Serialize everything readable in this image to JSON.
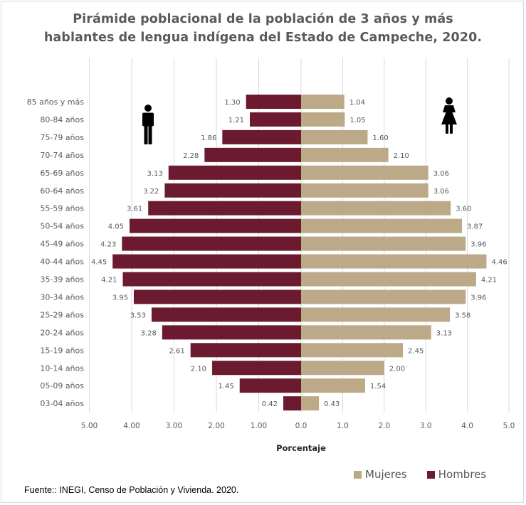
{
  "title": {
    "line1": "Pirámide poblacional de la población de 3 años y más",
    "line2": "hablantes de lengua indígena del Estado de Campeche, 2020."
  },
  "source": "Fuente:: INEGI, Censo de Población y Vivienda. 2020.",
  "legend": {
    "mujeres": "Mujeres",
    "hombres": "Hombres"
  },
  "colors": {
    "hombres": "#6b1a2f",
    "mujeres": "#bba987",
    "grid": "#d9d9d9",
    "text": "#595959"
  },
  "icons": {
    "male": "male-icon",
    "female": "female-icon"
  },
  "chart_data": {
    "type": "bar",
    "orientation": "horizontal",
    "title": "Pirámide poblacional de la población de 3 años y más hablantes de lengua indígena del Estado de Campeche, 2020.",
    "xlabel": "Porcentaje",
    "ylabel": "",
    "xlim": [
      -5,
      5
    ],
    "xticks": [
      "5.00",
      "4.00",
      "3.00",
      "2.00",
      "1.00",
      "0.0",
      "0.0",
      "1.0",
      "2.0",
      "3.0",
      "4.0",
      "5.0"
    ],
    "grid": true,
    "legend_position": "bottom-right",
    "categories": [
      "85 años y más",
      "80-84 años",
      "75-79 años",
      "70-74 años",
      "65-69 años",
      "60-64 años",
      "55-59 años",
      "50-54 años",
      "45-49 años",
      "40-44 años",
      "35-39 años",
      "30-34 años",
      "25-29 años",
      "20-24 años",
      "15-19 años",
      "10-14 años",
      "05-09 años",
      "03-04 años"
    ],
    "series": [
      {
        "name": "Hombres",
        "side": "left",
        "values": [
          1.3,
          1.21,
          1.86,
          2.28,
          3.13,
          3.22,
          3.61,
          4.05,
          4.23,
          4.45,
          4.21,
          3.95,
          3.53,
          3.28,
          2.61,
          2.1,
          1.45,
          0.42
        ],
        "labels": [
          "1.30",
          "1.21",
          "1.86",
          "2.28",
          "3.13",
          "3.22",
          "3.61",
          "4.05",
          "4.23",
          "4.45",
          "4.21",
          "3.95",
          "3.53",
          "3.28",
          "2.61",
          "2.10",
          "1.45",
          "0.42"
        ]
      },
      {
        "name": "Mujeres",
        "side": "right",
        "values": [
          1.04,
          1.05,
          1.6,
          2.1,
          3.06,
          3.06,
          3.6,
          3.87,
          3.96,
          4.46,
          4.21,
          3.96,
          3.58,
          3.13,
          2.45,
          2.0,
          1.54,
          0.43
        ],
        "labels": [
          "1.04",
          "1.05",
          "1.60",
          "2.10",
          "3.06",
          "3.06",
          "3.60",
          "3.87",
          "3.96",
          "4.46",
          "4.21",
          "3.96",
          "3.58",
          "3.13",
          "2.45",
          "2.00",
          "1.54",
          "0.43"
        ]
      }
    ]
  }
}
